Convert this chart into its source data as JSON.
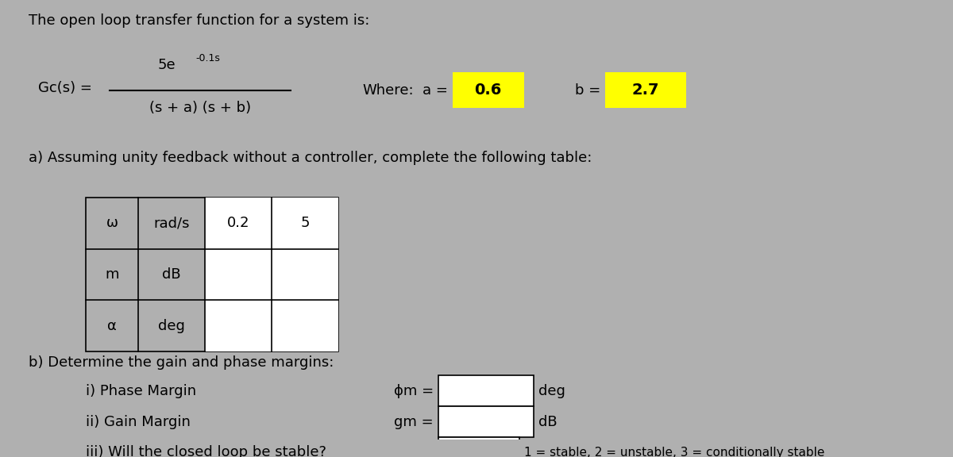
{
  "bg_color": "#b0b0b0",
  "title_text": "The open loop transfer function for a system is:",
  "gc_label": "Gc(s) =",
  "numerator_main": "5e",
  "numerator_exp": "-0.1s",
  "denominator": "(s + a) (s + b)",
  "where_text": "Where:",
  "a_label": "a =",
  "a_value": "0.6",
  "b_label": "b =",
  "b_value": "2.7",
  "highlight_color": "#ffff00",
  "section_a_text": "a) Assuming unity feedback without a controller, complete the following table:",
  "table_headers": [
    "ω",
    "rad/s",
    "0.2",
    "5"
  ],
  "table_row1": [
    "m",
    "dB",
    "",
    ""
  ],
  "table_row2": [
    "α",
    "deg",
    "",
    ""
  ],
  "section_b_text": "b) Determine the gain and phase margins:",
  "phase_margin_label": "i) Phase Margin",
  "phase_margin_symbol": "ϕm =",
  "phase_margin_unit": "deg",
  "gain_margin_label": "ii) Gain Margin",
  "gain_margin_symbol": "gm =",
  "gain_margin_unit": "dB",
  "stable_label": "iii) Will the closed loop be stable?",
  "stable_note": "1 = stable, 2 = unstable, 3 = conditionally stable",
  "box_color": "#ffffff",
  "text_color": "#000000",
  "font_size": 13,
  "small_font": 11
}
